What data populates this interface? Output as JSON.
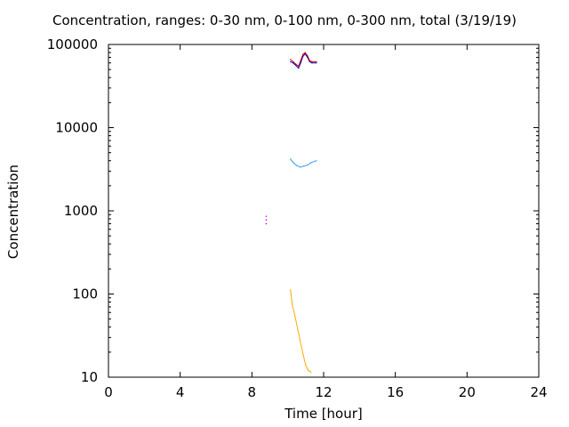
{
  "chart_data": {
    "type": "line",
    "title": "Concentration, ranges: 0-30 nm, 0-100 nm, 0-300 nm, total (3/19/19)",
    "xlabel": "Time [hour]",
    "ylabel": "Concentration",
    "xlim": [
      0,
      24
    ],
    "ylim": [
      10,
      100000
    ],
    "yscale": "log",
    "grid": false,
    "xticks": [
      0,
      4,
      8,
      12,
      16,
      20,
      24
    ],
    "yticks": [
      10,
      100,
      1000,
      10000,
      100000
    ],
    "ytick_labels": [
      "10",
      "100",
      "1000",
      "10000",
      "100000"
    ],
    "series": [
      {
        "color": "#0000cc",
        "x": [
          10.15,
          10.3,
          10.45,
          10.6,
          10.72,
          10.85,
          10.97,
          11.1,
          11.22,
          11.35,
          11.6
        ],
        "y": [
          62000,
          60000,
          56000,
          52000,
          60000,
          72000,
          77000,
          70000,
          62000,
          60000,
          60000
        ]
      },
      {
        "color": "#cc0000",
        "x": [
          10.15,
          10.3,
          10.45,
          10.6,
          10.72,
          10.85,
          10.97,
          11.1,
          11.22,
          11.35,
          11.6
        ],
        "y": [
          66000,
          62000,
          58000,
          55000,
          64000,
          76000,
          80000,
          73000,
          64000,
          62000,
          62000
        ]
      },
      {
        "color": "#cc00cc",
        "x": [
          8.8,
          8.8,
          8.8
        ],
        "y": [
          700,
          780,
          860
        ]
      },
      {
        "color": "#3399ee",
        "x": [
          10.15,
          10.3,
          10.5,
          10.7,
          10.9,
          11.1,
          11.3,
          11.6
        ],
        "y": [
          4200,
          3800,
          3500,
          3350,
          3450,
          3550,
          3800,
          4000
        ]
      },
      {
        "color": "#ffaa00",
        "x": [
          10.15,
          10.25,
          10.4,
          10.55,
          10.7,
          10.85,
          11.0,
          11.15,
          11.3
        ],
        "y": [
          112,
          75,
          55,
          38,
          27,
          19,
          14,
          12,
          11.5
        ]
      }
    ]
  }
}
